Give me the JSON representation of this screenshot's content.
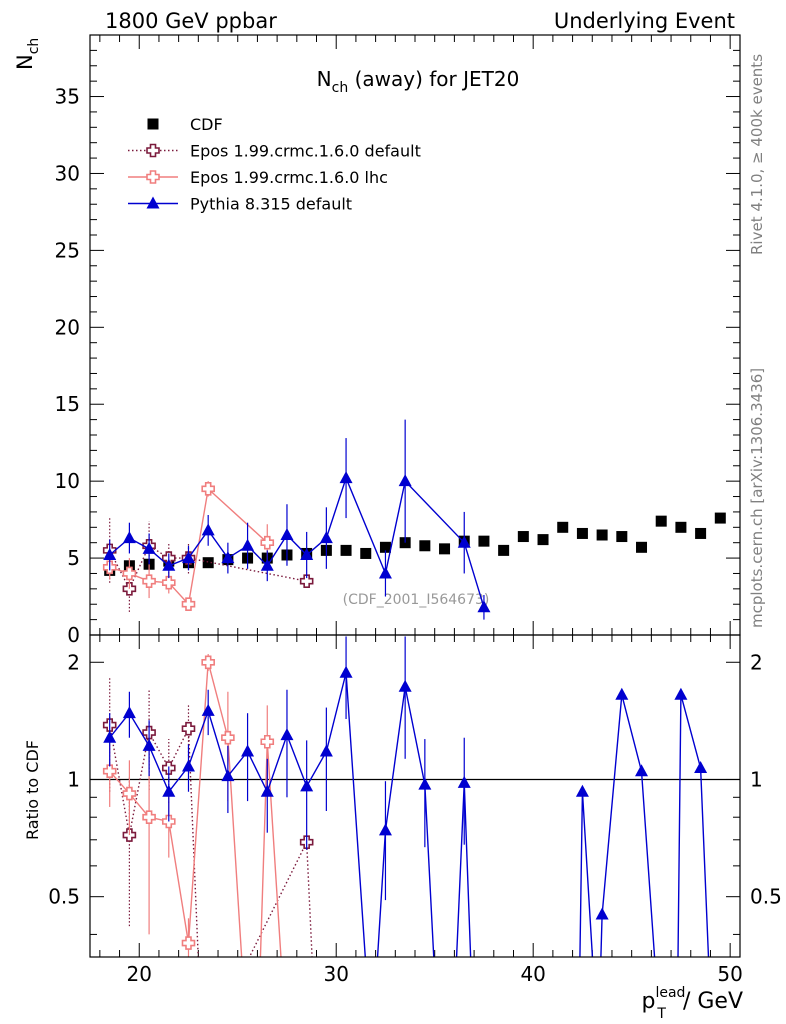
{
  "header": {
    "left": "1800 GeV ppbar",
    "right": "Underlying Event"
  },
  "side_labels": {
    "rivet": "Rivet 4.1.0, ≥ 400k events",
    "mcplots": "mcplots.cern.ch [arXiv:1306.3436]"
  },
  "watermark": "(CDF_2001_I564673)",
  "chart_data": [
    {
      "type": "scatter",
      "title_main": "N",
      "title_sub": "ch",
      "title_rest": " (away) for JET20",
      "ylabel_main": "N",
      "ylabel_sub": "ch",
      "xlabel_main": "p",
      "xlabel_sub": "T",
      "xlabel_sup": "lead",
      "xlabel_unit": " / GeV",
      "xlim": [
        17.5,
        50.5
      ],
      "ylim": [
        0,
        39
      ],
      "x_ticks": [
        20,
        30,
        40,
        50
      ],
      "y_ticks": [
        0,
        5,
        10,
        15,
        20,
        25,
        30,
        35
      ],
      "series": [
        {
          "name": "CDF",
          "color": "#000000",
          "marker": "square",
          "x": [
            18.5,
            19.5,
            20.5,
            21.5,
            22.5,
            23.5,
            24.5,
            25.5,
            26.5,
            27.5,
            28.5,
            29.5,
            30.5,
            31.5,
            32.5,
            33.5,
            34.5,
            35.5,
            36.5,
            37.5,
            38.5,
            39.5,
            40.5,
            41.5,
            42.5,
            43.5,
            44.5,
            45.5,
            46.5,
            47.5,
            48.5,
            49.5
          ],
          "y": [
            4.2,
            4.5,
            4.6,
            4.8,
            4.7,
            4.7,
            4.9,
            5.0,
            5.0,
            5.2,
            5.3,
            5.5,
            5.5,
            5.3,
            5.7,
            6.0,
            5.8,
            5.6,
            6.1,
            6.1,
            5.5,
            6.4,
            6.2,
            7.0,
            6.6,
            6.5,
            6.4,
            5.7,
            7.4,
            7.0,
            6.6,
            7.6
          ]
        },
        {
          "name": "Epos 1.99.crmc.1.6.0 default",
          "color": "#7b1a3c",
          "marker": "open-cross",
          "dash": "dotted",
          "x": [
            18.5,
            19.5,
            20.5,
            21.5,
            22.5,
            28.5
          ],
          "y": [
            5.5,
            3.0,
            5.8,
            5.0,
            5.0,
            3.5
          ],
          "err": [
            2.1,
            1.5,
            1.6,
            1.0,
            1.0,
            0.0
          ]
        },
        {
          "name": "Epos 1.99.crmc.1.6.0 lhc",
          "color": "#f07e7e",
          "marker": "open-cross",
          "x": [
            18.5,
            19.5,
            20.5,
            21.5,
            22.5,
            23.5,
            26.5
          ],
          "y": [
            4.4,
            4.0,
            3.5,
            3.4,
            2.0,
            9.5,
            6.0
          ],
          "err": [
            0.8,
            1.0,
            1.1,
            0.7,
            0.3,
            0.5,
            1.2
          ]
        },
        {
          "name": "Pythia 8.315 default",
          "color": "#0000d0",
          "marker": "triangle",
          "x": [
            18.5,
            19.5,
            20.5,
            21.5,
            22.5,
            23.5,
            24.5,
            25.5,
            26.5,
            27.5,
            28.5,
            29.5,
            30.5,
            32.5,
            33.5,
            36.5,
            37.5
          ],
          "y": [
            5.2,
            6.3,
            5.6,
            4.5,
            5.0,
            6.8,
            5.0,
            5.8,
            4.5,
            6.5,
            5.2,
            6.3,
            10.2,
            4.0,
            10.0,
            6.0,
            1.8
          ],
          "err": [
            1.0,
            1.0,
            1.0,
            0.8,
            0.8,
            1.0,
            1.0,
            1.5,
            1.0,
            2.0,
            1.5,
            2.0,
            2.6,
            1.5,
            4.0,
            2.0,
            0.8
          ]
        }
      ]
    },
    {
      "type": "scatter",
      "ylabel": "Ratio to CDF",
      "xlim": [
        17.5,
        50.5
      ],
      "ylim": [
        0.35,
        2.35
      ],
      "y_ticks": [
        0.5,
        1,
        2
      ],
      "x_ticks": [
        20,
        30,
        40,
        50
      ],
      "reference_line": 1,
      "series": [
        {
          "name": "Epos 1.99.crmc.1.6.0 default",
          "x": [
            18.5,
            19.5,
            20.5,
            21.5,
            22.5,
            28.5
          ],
          "y": [
            1.38,
            0.72,
            1.32,
            1.07,
            1.35,
            0.69
          ],
          "err": [
            0.45,
            0.3,
            0.38,
            0.2,
            0.2,
            0.0
          ],
          "extends_below_at": [
            23.2,
            29.0
          ]
        },
        {
          "name": "Epos 1.99.crmc.1.6.0 lhc",
          "x": [
            18.5,
            19.5,
            20.5,
            21.5,
            22.5,
            23.5,
            24.5,
            26.5
          ],
          "y": [
            1.05,
            0.92,
            0.8,
            0.78,
            0.38,
            2.0,
            1.28,
            1.25
          ],
          "err": [
            0.2,
            0.2,
            0.4,
            0.15,
            0.06,
            0.1,
            0.4,
            0.3
          ],
          "extends_below_at": [
            25.5,
            26.0,
            27.5
          ]
        },
        {
          "name": "Pythia 8.315 default",
          "x": [
            18.5,
            19.5,
            20.5,
            21.5,
            22.5,
            23.5,
            24.5,
            25.5,
            26.5,
            27.5,
            28.5,
            29.5,
            30.5,
            32.5,
            33.5,
            34.5,
            36.5,
            42.5,
            43.5,
            44.5,
            45.5,
            47.5,
            48.5
          ],
          "y": [
            1.28,
            1.48,
            1.22,
            0.93,
            1.08,
            1.5,
            1.02,
            1.18,
            0.93,
            1.3,
            0.96,
            1.18,
            1.88,
            0.74,
            1.73,
            0.97,
            0.98,
            0.93,
            0.45,
            1.65,
            1.05,
            1.65,
            1.07
          ],
          "err": [
            0.2,
            0.2,
            0.2,
            0.15,
            0.15,
            0.2,
            0.2,
            0.3,
            0.2,
            0.4,
            0.3,
            0.35,
            0.45,
            0.25,
            0.6,
            0.3,
            0.3,
            0.0,
            0.0,
            0.0,
            0.0,
            0.0,
            0.0
          ],
          "extends_below_at": [
            31.8,
            35.2,
            35.9,
            37.0,
            42.3,
            43.3,
            46.5,
            47.3,
            49.1
          ]
        }
      ]
    }
  ]
}
